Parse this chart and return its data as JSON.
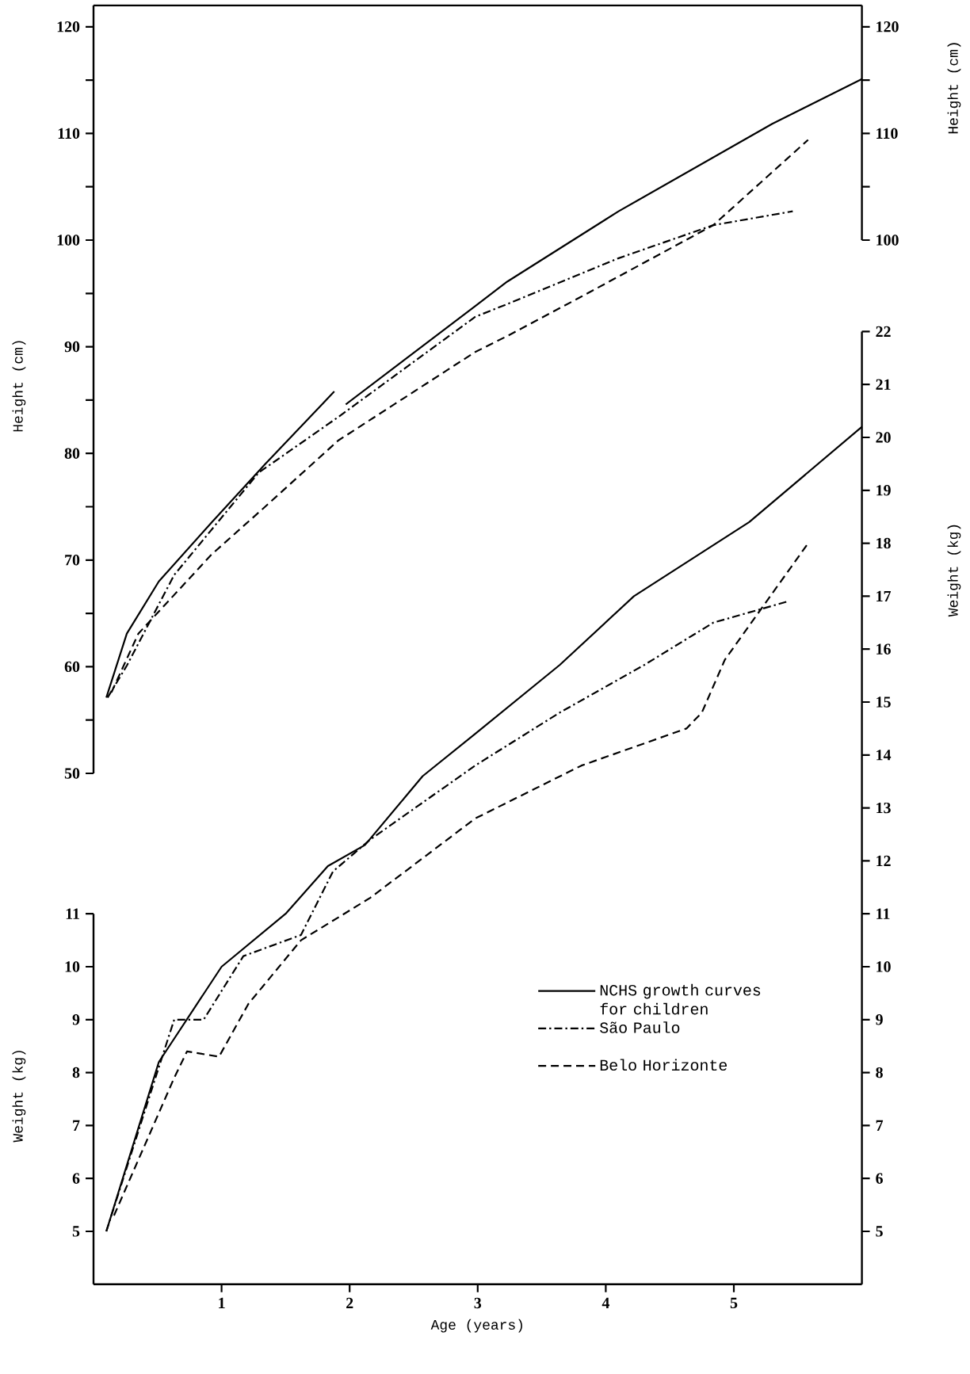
{
  "chart_data": [
    {
      "type": "line",
      "ylabel": "Height (cm)",
      "y2label": "Height (cm)",
      "tick_labels": "y",
      "xlim": [
        0,
        6
      ],
      "ylim": [
        50,
        122
      ],
      "yticks": [
        50,
        {
          "value": 55,
          "label": null
        },
        60,
        {
          "value": 65,
          "label": null
        },
        70,
        {
          "value": 75,
          "label": null
        },
        80,
        {
          "value": 85,
          "label": null
        },
        90,
        {
          "value": 95,
          "label": null
        },
        100,
        {
          "value": 105,
          "label": null
        },
        110,
        {
          "value": 115,
          "label": null
        },
        120
      ],
      "y2lim": [
        100,
        122
      ],
      "y2ticks": [
        100,
        {
          "value": 105,
          "label": null
        },
        110,
        {
          "value": 115,
          "label": null
        },
        120
      ],
      "grid": false,
      "marker": "none",
      "series": [
        {
          "color": "#000000",
          "line_style": "solid",
          "axis": "y",
          "x": [
            0.1,
            0.26,
            0.51,
            0.92,
            1.34,
            1.88,
            1.92,
            1.97,
            2.98,
            3.23,
            4.1,
            5.3,
            6.0
          ],
          "values": [
            57.1,
            63.1,
            68.0,
            73.5,
            79.0,
            85.8,
            null,
            84.6,
            93.8,
            96.1,
            102.7,
            110.9,
            115.1
          ]
        },
        {
          "color": "#000000",
          "line_style": "dashdot",
          "axis": "y",
          "x": [
            0.11,
            0.26,
            0.63,
            1.29,
            1.91,
            2.98,
            3.23,
            4.1,
            4.84,
            5.46
          ],
          "values": [
            57.1,
            60.1,
            68.6,
            78.2,
            83.4,
            92.8,
            94.0,
            98.3,
            101.4,
            102.7
          ]
        },
        {
          "color": "#000000",
          "line_style": "dashed",
          "axis": "y",
          "x": [
            0.14,
            0.35,
            0.92,
            1.34,
            1.91,
            2.98,
            3.23,
            3.81,
            4.84,
            5.58
          ],
          "values": [
            57.6,
            63.1,
            70.5,
            75.0,
            81.2,
            89.5,
            91.0,
            94.7,
            101.4,
            109.4
          ]
        }
      ]
    },
    {
      "type": "line",
      "xlabel": "Age (years)",
      "ylabel": "Weight (kg)",
      "y2label": "Weight (kg)",
      "xlim": [
        0,
        6
      ],
      "xticks": [
        1,
        2,
        3,
        4,
        5
      ],
      "ylim": [
        4,
        11
      ],
      "yticks": [
        5,
        6,
        7,
        8,
        9,
        10,
        11
      ],
      "y2lim": [
        4,
        22
      ],
      "y2ticks": [
        5,
        6,
        7,
        8,
        9,
        10,
        11,
        12,
        13,
        14,
        15,
        16,
        17,
        18,
        19,
        20,
        21,
        22
      ],
      "grid": false,
      "marker": "none",
      "legend": "right",
      "series": [
        {
          "name": "NCHS growth curves for children",
          "color": "#000000",
          "line_style": "solid",
          "axis": "y2",
          "x": [
            0.1,
            0.51,
            1.0,
            1.5,
            1.83,
            2.12,
            2.57,
            2.98,
            3.64,
            4.22,
            5.12,
            6.0
          ],
          "values": [
            5.0,
            8.2,
            10.0,
            11.0,
            11.9,
            12.3,
            13.6,
            14.4,
            15.7,
            17.0,
            18.4,
            20.2
          ]
        },
        {
          "name": "São Paulo",
          "color": "#000000",
          "line_style": "dashdot",
          "axis": "y2",
          "x": [
            0.1,
            0.51,
            0.63,
            0.86,
            1.17,
            1.62,
            1.87,
            2.16,
            2.98,
            3.64,
            4.3,
            4.84,
            5.42
          ],
          "values": [
            5.0,
            8.1,
            9.0,
            9.0,
            10.2,
            10.6,
            11.8,
            12.4,
            13.8,
            14.8,
            15.7,
            16.5,
            16.9
          ]
        },
        {
          "name": "Belo Horizonte",
          "color": "#000000",
          "line_style": "dashed",
          "axis": "y2",
          "x": [
            0.16,
            0.63,
            0.73,
            0.98,
            1.21,
            1.62,
            2.16,
            2.98,
            3.81,
            4.63,
            4.75,
            4.93,
            5.58
          ],
          "values": [
            5.3,
            7.9,
            8.4,
            8.3,
            9.3,
            10.5,
            11.3,
            12.8,
            13.8,
            14.5,
            14.8,
            15.8,
            18.0
          ]
        }
      ]
    }
  ]
}
